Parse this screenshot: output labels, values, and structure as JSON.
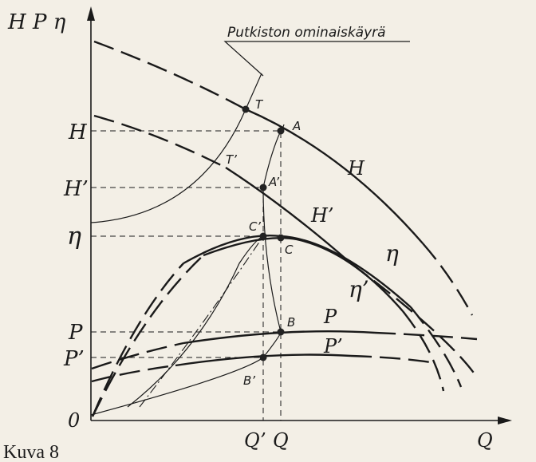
{
  "axis_labels": {
    "top": "H P η",
    "H": "H",
    "H_prime": "H’",
    "eta": "η",
    "P": "P",
    "P_prime": "P’",
    "origin": "0",
    "Q_prime": "Q’",
    "Q": "Q",
    "Q_axis": "Q"
  },
  "curve_labels": {
    "H": "H",
    "H_prime": "H’",
    "eta": "η",
    "eta_prime": "η’",
    "P": "P",
    "P_prime": "P’"
  },
  "points": {
    "T": "T",
    "T_prime": "T’",
    "A": "A",
    "A_prime": "A’",
    "C": "C",
    "C_prime": "C’",
    "B": "B",
    "B_prime": "B’"
  },
  "annotation": "Putkiston ominaiskäyrä",
  "caption": "Kuva 8"
}
